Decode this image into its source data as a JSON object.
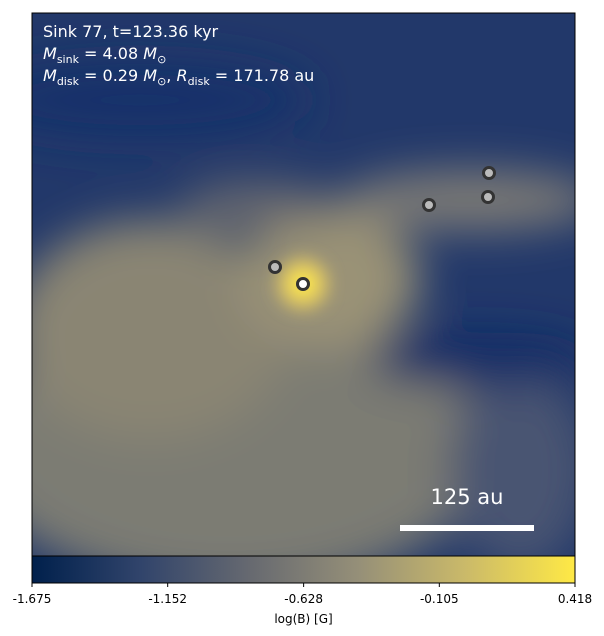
{
  "chart_data": {
    "type": "image",
    "annotations": [
      [
        {
          "text": "Sink 77, t=123.36 kyr"
        }
      ],
      [
        {
          "text": "M",
          "italic": true
        },
        {
          "text": "sink",
          "sub": true
        },
        {
          "text": " = 4.08 "
        },
        {
          "text": "M",
          "italic": true
        },
        {
          "text": "⊙",
          "sub": true
        }
      ],
      [
        {
          "text": "M",
          "italic": true
        },
        {
          "text": "disk",
          "sub": true
        },
        {
          "text": " = 0.29 "
        },
        {
          "text": "M",
          "italic": true
        },
        {
          "text": "⊙",
          "sub": true
        },
        {
          "text": ", "
        },
        {
          "text": "R",
          "italic": true
        },
        {
          "text": "disk",
          "sub": true
        },
        {
          "text": " = 171.78 au"
        }
      ]
    ],
    "scale_bar": "125 au",
    "colorbar_label": "log(B) [G]",
    "clim": [
      -1.675,
      0.418
    ],
    "cticks": [
      -1.675,
      -1.152,
      -0.628,
      -0.105,
      0.418
    ],
    "colormap": [
      "#00204c",
      "#31446b",
      "#666970",
      "#958f78",
      "#cbba69",
      "#ffe945"
    ]
  }
}
